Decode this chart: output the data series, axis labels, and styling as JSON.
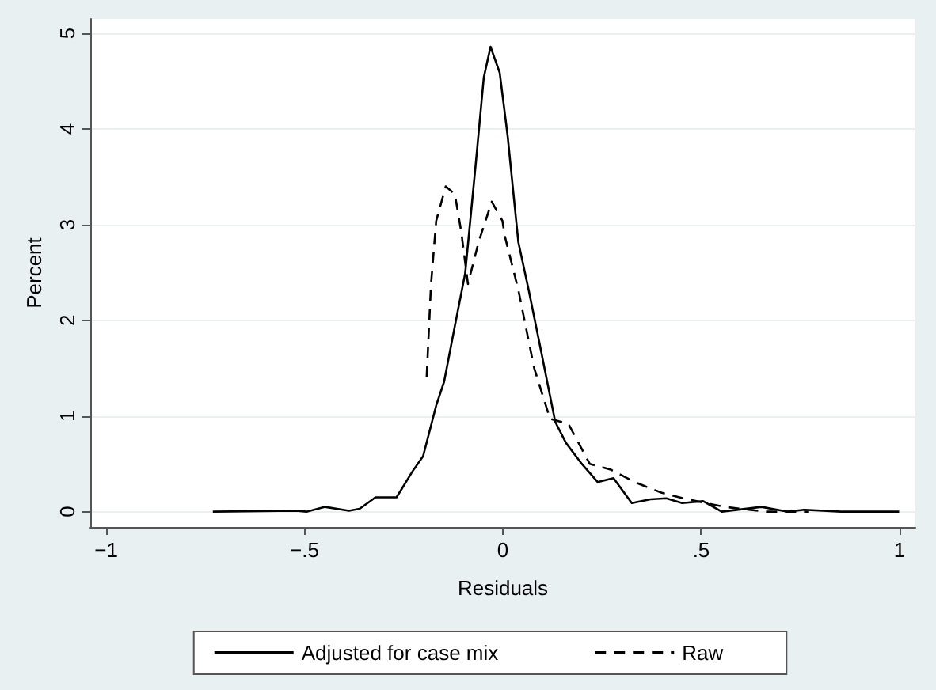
{
  "chart_data": {
    "type": "line",
    "xlabel": "Residuals",
    "ylabel": "Percent",
    "xlim": [
      -1.04,
      1.04
    ],
    "ylim": [
      -0.16,
      5.15
    ],
    "xticks": [
      {
        "value": -1,
        "label": "−1"
      },
      {
        "value": -0.5,
        "label": "−.5"
      },
      {
        "value": 0,
        "label": "0"
      },
      {
        "value": 0.5,
        "label": ".5"
      },
      {
        "value": 1,
        "label": "1"
      }
    ],
    "yticks": [
      0,
      1,
      2,
      3,
      4,
      5
    ],
    "grid": "y",
    "legend": "bottom",
    "marker": "none",
    "series": [
      {
        "name": "Adjusted for case mix",
        "color": "#000000",
        "line_style": "solid",
        "x": [
          -0.731,
          -0.521,
          -0.495,
          -0.448,
          -0.388,
          -0.361,
          -0.321,
          -0.268,
          -0.228,
          -0.201,
          -0.168,
          -0.148,
          -0.121,
          -0.095,
          -0.068,
          -0.048,
          -0.031,
          -0.008,
          0.012,
          0.039,
          0.065,
          0.092,
          0.132,
          0.159,
          0.199,
          0.239,
          0.279,
          0.325,
          0.372,
          0.412,
          0.452,
          0.505,
          0.552,
          0.652,
          0.719,
          0.759,
          0.852,
          0.999
        ],
        "values": [
          0.0,
          0.01,
          0.0,
          0.05,
          0.01,
          0.03,
          0.15,
          0.15,
          0.42,
          0.58,
          1.11,
          1.36,
          1.94,
          2.49,
          3.65,
          4.54,
          4.86,
          4.59,
          3.93,
          2.82,
          2.32,
          1.77,
          0.94,
          0.72,
          0.5,
          0.31,
          0.35,
          0.09,
          0.13,
          0.14,
          0.09,
          0.11,
          0.0,
          0.05,
          0.0,
          0.02,
          0.0,
          0.0
        ]
      },
      {
        "name": "Raw",
        "color": "#000000",
        "line_style": "dashed",
        "x": [
          -0.192,
          -0.181,
          -0.168,
          -0.144,
          -0.121,
          -0.105,
          -0.088,
          -0.061,
          -0.028,
          -0.001,
          0.005,
          0.039,
          0.079,
          0.119,
          0.165,
          0.219,
          0.272,
          0.332,
          0.399,
          0.465,
          0.559,
          0.665,
          0.77
        ],
        "values": [
          1.41,
          2.38,
          3.04,
          3.4,
          3.32,
          2.93,
          2.38,
          2.82,
          3.24,
          3.04,
          2.88,
          2.32,
          1.5,
          0.97,
          0.92,
          0.5,
          0.44,
          0.31,
          0.2,
          0.13,
          0.05,
          0.0,
          0.0
        ]
      }
    ]
  }
}
